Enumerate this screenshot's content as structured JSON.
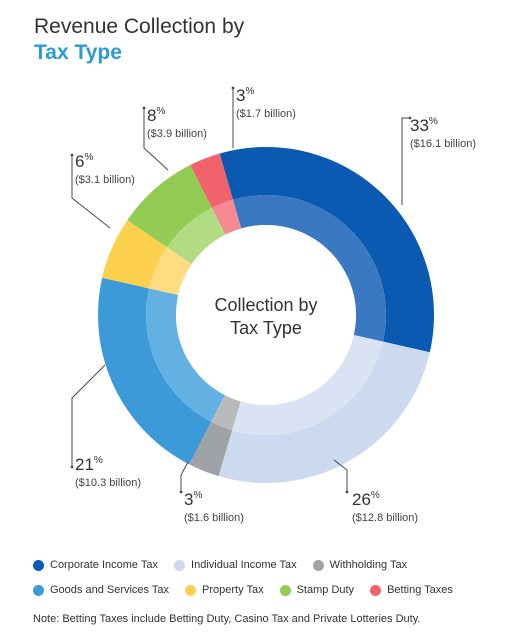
{
  "title": {
    "line1": "Revenue Collection by",
    "line2": "Tax Type"
  },
  "center_label": {
    "line1": "Collection by",
    "line2": "Tax Type"
  },
  "chart_data": {
    "type": "pie",
    "title": "Revenue Collection by Tax Type",
    "categories": [
      "Corporate Income Tax",
      "Individual Income Tax",
      "Withholding Tax",
      "Goods and Services Tax",
      "Property Tax",
      "Stamp Duty",
      "Betting Taxes"
    ],
    "values": [
      33,
      26,
      3,
      21,
      6,
      8,
      3
    ],
    "value_labels": [
      "33%",
      "26%",
      "3%",
      "21%",
      "6%",
      "8%",
      "3%"
    ],
    "amount_labels": [
      "($16.1 billion)",
      "($12.8 billion)",
      "($1.6 billion)",
      "($10.3 billion)",
      "($3.1 billion)",
      "($3.9 billion)",
      "($1.7 billion)"
    ],
    "amounts_billion": [
      16.1,
      12.8,
      1.6,
      10.3,
      3.1,
      3.9,
      1.7
    ],
    "colors": [
      "#0a5ab1",
      "#cdd9ef",
      "#a0a3a6",
      "#3c9ad9",
      "#fdd04e",
      "#93cc54",
      "#f2626d"
    ],
    "inner_colors": [
      "#3a78c1",
      "#dae3f3",
      "#b8babc",
      "#63b1e3",
      "#fddd80",
      "#b2dc84",
      "#f58a92"
    ],
    "legend_placement": "bottom"
  },
  "slice_labels": [
    {
      "pct": "33",
      "amt": "($16.1 billion)"
    },
    {
      "pct": "26",
      "amt": "($12.8 billion)"
    },
    {
      "pct": "3",
      "amt": "($1.6 billion)"
    },
    {
      "pct": "21",
      "amt": "($10.3 billion)"
    },
    {
      "pct": "6",
      "amt": "($3.1 billion)"
    },
    {
      "pct": "8",
      "amt": "($3.9 billion)"
    },
    {
      "pct": "3",
      "amt": "($1.7 billion)"
    }
  ],
  "percent_sign": "%",
  "legend": [
    {
      "label": "Corporate Income Tax",
      "color": "#0a5ab1"
    },
    {
      "label": "Individual Income Tax",
      "color": "#cdd9ef"
    },
    {
      "label": "Withholding Tax",
      "color": "#a0a3a6"
    },
    {
      "label": "Goods and Services Tax",
      "color": "#3c9ad9"
    },
    {
      "label": "Property Tax",
      "color": "#fdd04e"
    },
    {
      "label": "Stamp Duty",
      "color": "#93cc54"
    },
    {
      "label": "Betting Taxes",
      "color": "#f2626d"
    }
  ],
  "note": "Note: Betting Taxes include Betting Duty, Casino Tax and Private Lotteries Duty."
}
